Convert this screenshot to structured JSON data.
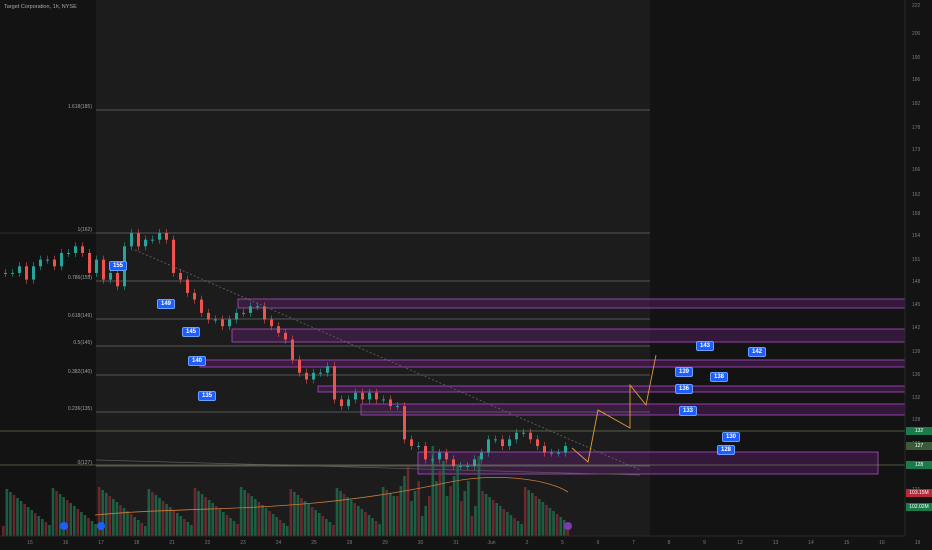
{
  "header": {
    "symbol_title": "Target Corporation, 1h, NYSE"
  },
  "y_axis_labels": [
    "222",
    "200",
    "190",
    "186",
    "182",
    "178",
    "173",
    "166",
    "162",
    "158",
    "154",
    "151",
    "148",
    "145",
    "142",
    "139",
    "136",
    "132",
    "128",
    "125",
    "121"
  ],
  "x_axis_labels": [
    "15",
    "16",
    "17",
    "18",
    "21",
    "22",
    "23",
    "24",
    "25",
    "28",
    "29",
    "30",
    "31",
    "Jun",
    "2",
    "5",
    "6",
    "7",
    "8",
    "9",
    "12",
    "13",
    "14",
    "15",
    "16",
    "19",
    "20"
  ],
  "fib_levels": [
    {
      "label": "1.618(185)"
    },
    {
      "label": "1(162)"
    },
    {
      "label": "0.786(155)"
    },
    {
      "label": "0.618(149)"
    },
    {
      "label": "0.5(145)"
    },
    {
      "label": "0.382(140)"
    },
    {
      "label": "0.236(135)"
    },
    {
      "label": "0(127)"
    }
  ],
  "callouts": [
    "155",
    "149",
    "145",
    "140",
    "135",
    "143",
    "142",
    "139",
    "136",
    "138",
    "133",
    "130",
    "128"
  ],
  "price_tags": [
    "132",
    "127",
    "128",
    "103.15M",
    "102.02M",
    "121"
  ],
  "colors": {
    "up": "#26a69a",
    "down": "#ef5350",
    "zone": "#7b2c8e",
    "callout": "#1e5eff",
    "volume_ma": "#d07a3a",
    "path": "#e59a3b"
  },
  "chart_data": {
    "type": "candlestick",
    "ohlc_close_series": [
      156,
      156,
      157,
      155,
      157,
      158,
      158,
      157,
      159,
      159,
      160,
      159,
      156,
      158,
      155,
      156,
      154,
      160,
      162,
      160,
      161,
      161,
      162,
      161,
      156,
      155,
      153,
      152,
      150,
      149,
      149,
      148,
      149,
      150,
      150,
      151,
      151,
      149,
      148,
      147,
      146,
      143,
      141,
      140,
      141,
      141,
      142,
      137,
      136,
      137,
      138,
      137,
      138,
      137,
      137,
      136,
      136,
      131,
      130,
      130,
      128,
      128,
      129,
      128,
      127,
      127,
      127,
      128,
      129,
      131,
      131,
      130,
      131,
      132,
      132,
      131,
      130,
      129,
      129,
      129,
      130
    ]
  }
}
